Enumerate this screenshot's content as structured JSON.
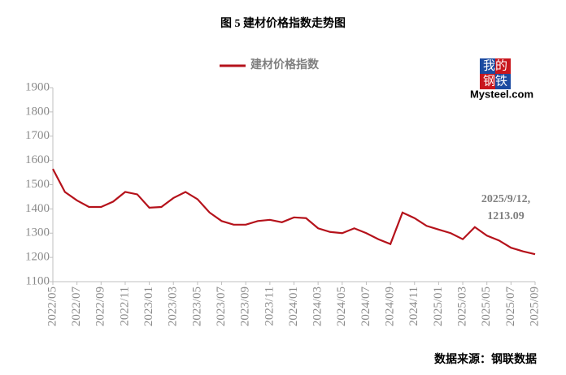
{
  "chart_data": {
    "type": "line",
    "title": "图 5  建材价格指数走势图",
    "source": "数据来源：钢联数据",
    "logo": [
      "我的",
      "钢铁",
      "Mysteel.com"
    ],
    "annotation": [
      "2025/9/12,",
      "1213.09"
    ],
    "x": [
      "2022/05",
      "2022/06",
      "2022/07",
      "2022/08",
      "2022/09",
      "2022/10",
      "2022/11",
      "2022/12",
      "2023/01",
      "2023/02",
      "2023/03",
      "2023/04",
      "2023/05",
      "2023/06",
      "2023/07",
      "2023/08",
      "2023/09",
      "2023/10",
      "2023/11",
      "2023/12",
      "2024/01",
      "2024/02",
      "2024/03",
      "2024/04",
      "2024/05",
      "2024/06",
      "2024/07",
      "2024/08",
      "2024/09",
      "2024/10",
      "2024/11",
      "2024/12",
      "2025/01",
      "2025/02",
      "2025/03",
      "2025/04",
      "2025/05",
      "2025/06",
      "2025/07",
      "2025/08",
      "2025/09"
    ],
    "xticks": [
      "2022/05",
      "2022/07",
      "2022/09",
      "2022/11",
      "2023/01",
      "2023/03",
      "2023/05",
      "2023/07",
      "2023/09",
      "2023/11",
      "2024/01",
      "2024/03",
      "2024/05",
      "2024/07",
      "2024/09",
      "2024/11",
      "2025/01",
      "2025/03",
      "2025/05",
      "2025/07",
      "2025/09"
    ],
    "series": [
      {
        "name": "建材价格指数",
        "color": "#b5121b",
        "values": [
          1565,
          1470,
          1435,
          1408,
          1408,
          1430,
          1470,
          1460,
          1405,
          1408,
          1445,
          1470,
          1440,
          1385,
          1350,
          1335,
          1335,
          1350,
          1355,
          1345,
          1365,
          1362,
          1320,
          1305,
          1300,
          1320,
          1300,
          1275,
          1255,
          1385,
          1362,
          1330,
          1315,
          1300,
          1275,
          1325,
          1290,
          1270,
          1240,
          1225,
          1213.09
        ]
      }
    ],
    "ylim": [
      1100,
      1900
    ],
    "yticks": [
      1100,
      1200,
      1300,
      1400,
      1500,
      1600,
      1700,
      1800,
      1900
    ]
  }
}
